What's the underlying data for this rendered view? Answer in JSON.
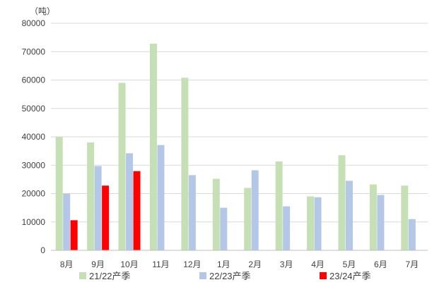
{
  "chart_data": {
    "type": "bar",
    "title": "",
    "xlabel": "",
    "ylabel": "",
    "unit_label": "（吨）",
    "categories": [
      "8月",
      "9月",
      "10月",
      "11月",
      "12月",
      "1月",
      "2月",
      "3月",
      "4月",
      "5月",
      "6月",
      "7月"
    ],
    "series": [
      {
        "name": "21/22产季",
        "color": "#C5E0B4",
        "values": [
          40000,
          38000,
          59000,
          72800,
          60800,
          25200,
          22000,
          31300,
          19000,
          33500,
          23200,
          22800
        ]
      },
      {
        "name": "22/23产季",
        "color": "#B4C7E7",
        "values": [
          20000,
          29700,
          34200,
          37100,
          26500,
          15000,
          28200,
          15500,
          18700,
          24500,
          19500,
          11000
        ]
      },
      {
        "name": "23/24产季",
        "color": "#FF0000",
        "values": [
          10600,
          22800,
          27900,
          null,
          null,
          null,
          null,
          null,
          null,
          null,
          null,
          null
        ]
      }
    ],
    "ylim": [
      0,
      80000
    ],
    "yticks": [
      0,
      10000,
      20000,
      30000,
      40000,
      50000,
      60000,
      70000,
      80000
    ],
    "grid": true,
    "legend_position": "bottom"
  }
}
